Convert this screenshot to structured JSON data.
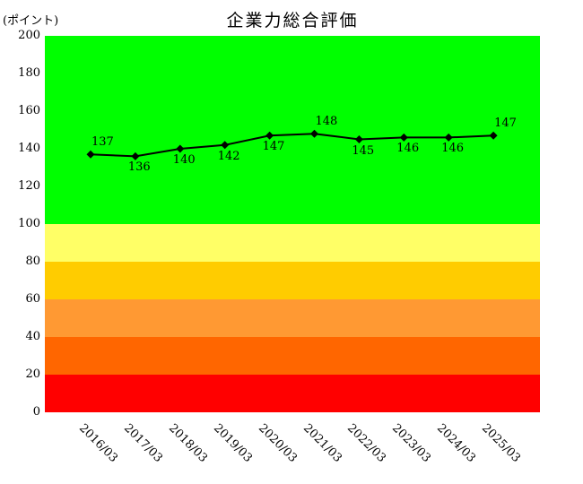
{
  "chart_data": {
    "type": "line",
    "title": "企業力総合評価",
    "unit_label": "(ポイント)",
    "categories": [
      "2016/03",
      "2017/03",
      "2018/03",
      "2019/03",
      "2020/03",
      "2021/03",
      "2022/03",
      "2023/03",
      "2024/03",
      "2025/03"
    ],
    "series": [
      {
        "name": "企業力総合評価",
        "values": [
          137,
          136,
          140,
          142,
          147,
          148,
          145,
          146,
          146,
          147
        ],
        "color": "#000000",
        "marker": "diamond"
      }
    ],
    "point_label_positions": [
      "above",
      "below",
      "below",
      "below",
      "below",
      "above",
      "below",
      "below",
      "below",
      "above"
    ],
    "ylim": [
      0,
      200
    ],
    "yticks": [
      0,
      20,
      40,
      60,
      80,
      100,
      120,
      140,
      160,
      180,
      200
    ],
    "grid": false,
    "legend_position": "none",
    "background_bands": [
      {
        "from": 100,
        "to": 200,
        "color": "#00ff00",
        "name": "green"
      },
      {
        "from": 80,
        "to": 100,
        "color": "#ffff66",
        "name": "light-yellow"
      },
      {
        "from": 60,
        "to": 80,
        "color": "#ffcc00",
        "name": "gold"
      },
      {
        "from": 40,
        "to": 60,
        "color": "#ff9933",
        "name": "orange"
      },
      {
        "from": 20,
        "to": 40,
        "color": "#ff6600",
        "name": "dark-orange"
      },
      {
        "from": 0,
        "to": 20,
        "color": "#ff0000",
        "name": "red"
      }
    ]
  }
}
